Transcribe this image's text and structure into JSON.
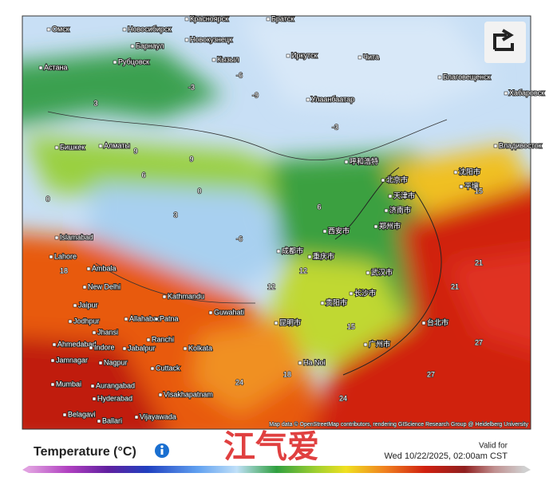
{
  "map": {
    "cities": [
      "Омск",
      "Новосибирск",
      "Барнаул",
      "Рубцовск",
      "Новокузнецк",
      "Кызыл",
      "Красноярск",
      "Братск",
      "Иркутск",
      "Чита",
      "Улаанбаатар",
      "Благовещенск",
      "Хабаровск",
      "Владивосток",
      "Астана",
      "Бишкек",
      "Алматы",
      "Islamabad",
      "Lahore",
      "Ambala",
      "New Delhi",
      "Jaipur",
      "Jodhpur",
      "Allahabad",
      "Patna",
      "Jhansi",
      "Ahmedabad",
      "Indore",
      "Jabalpur",
      "Ranchi",
      "Kolkata",
      "Nagpur",
      "Cuttack",
      "Jamnagar",
      "Mumbai",
      "Aurangabad",
      "Hyderabad",
      "Visakhapatnam",
      "Belagavi",
      "Ballari",
      "Vijayawada",
      "Kathmandu",
      "Guwahati",
      "Ha Noi",
      "呼和浩特",
      "北京市",
      "天津市",
      "济南市",
      "郑州市",
      "西安市",
      "武汉市",
      "长沙市",
      "贵阳市",
      "昆明市",
      "广州市",
      "台北市",
      "重庆市",
      "成都市",
      "沈阳市",
      "平壤"
    ],
    "contour_labels": [
      -3,
      -6,
      -9,
      0,
      3,
      6,
      9,
      12,
      15,
      18,
      21,
      24,
      27,
      -3,
      3,
      9,
      15,
      21,
      27,
      12,
      0,
      -6,
      6,
      18,
      24
    ],
    "attribution": "Map data © OpenStreetMap contributors, rendering GIScience Research Group @ Heidelberg University"
  },
  "footer": {
    "legend_title": "Temperature (°C)",
    "watermark": "江气爱",
    "valid_for": "Valid for",
    "valid_time": "Wed 10/22/2025, 02:00am CST"
  }
}
